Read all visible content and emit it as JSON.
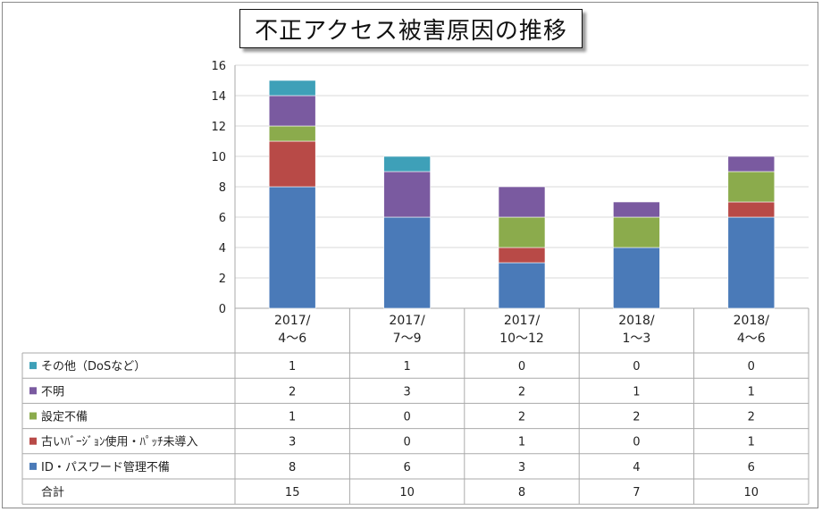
{
  "title": "不正アクセス被害原因の推移",
  "chart_data": {
    "type": "bar",
    "stacked": true,
    "categories": [
      "2017/\n4〜6",
      "2017/\n7〜9",
      "2017/\n10〜12",
      "2018/\n1〜3",
      "2018/\n4〜6"
    ],
    "ylim": [
      0,
      16
    ],
    "yticks": [
      0,
      2,
      4,
      6,
      8,
      10,
      12,
      14,
      16
    ],
    "grid": true,
    "series": [
      {
        "name": "ID・パスワード管理不備",
        "color": "#4a7ab8",
        "values": [
          8,
          6,
          3,
          4,
          6
        ]
      },
      {
        "name": "古いﾊﾞｰｼﾞｮﾝ使用・ﾊﾟｯﾁ未導入",
        "color": "#b84a47",
        "values": [
          3,
          0,
          1,
          0,
          1
        ]
      },
      {
        "name": "設定不備",
        "color": "#8bab4c",
        "values": [
          1,
          0,
          2,
          2,
          2
        ]
      },
      {
        "name": "不明",
        "color": "#7a5aa0",
        "values": [
          2,
          3,
          2,
          1,
          1
        ]
      },
      {
        "name": "その他（DoSなど）",
        "color": "#3ea0b8",
        "values": [
          1,
          1,
          0,
          0,
          0
        ]
      }
    ],
    "table_rows_order": [
      "その他（DoSなど）",
      "不明",
      "設定不備",
      "古いﾊﾞｰｼﾞｮﾝ使用・ﾊﾟｯﾁ未導入",
      "ID・パスワード管理不備"
    ],
    "total_label": "合計",
    "totals": [
      15,
      10,
      8,
      7,
      10
    ]
  }
}
